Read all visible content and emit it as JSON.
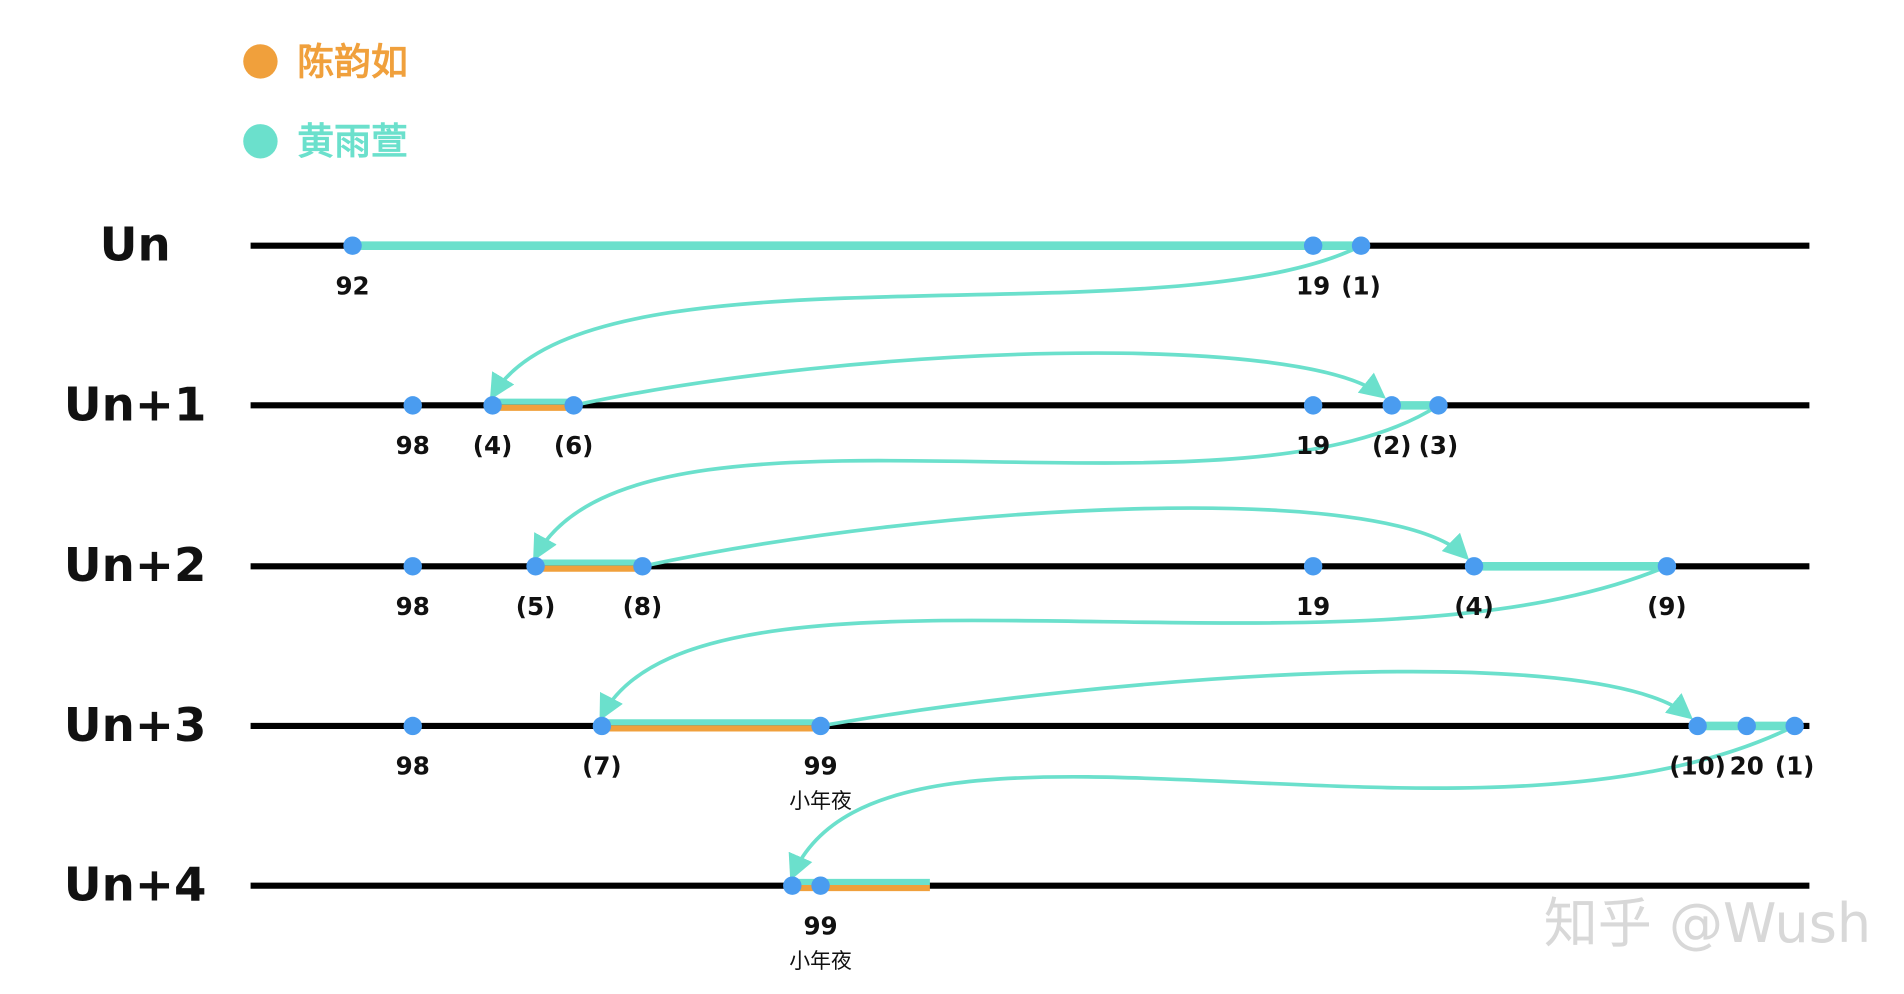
{
  "legend": [
    {
      "label": "陈韵如",
      "color": "#f0a03c"
    },
    {
      "label": "黄雨萱",
      "color": "#6be0cc"
    }
  ],
  "rows": [
    {
      "label": "Un",
      "points": [
        {
          "label": "92"
        },
        {
          "label": "19"
        },
        {
          "label": "(1)"
        }
      ]
    },
    {
      "label": "Un+1",
      "points": [
        {
          "label": "98"
        },
        {
          "label": "(4)"
        },
        {
          "label": "(6)"
        },
        {
          "label": "19"
        },
        {
          "label": "(2)"
        },
        {
          "label": "(3)"
        }
      ]
    },
    {
      "label": "Un+2",
      "points": [
        {
          "label": "98"
        },
        {
          "label": "(5)"
        },
        {
          "label": "(8)"
        },
        {
          "label": "19"
        },
        {
          "label": "(4)"
        },
        {
          "label": "(9)"
        }
      ]
    },
    {
      "label": "Un+3",
      "points": [
        {
          "label": "98"
        },
        {
          "label": "(7)"
        },
        {
          "label": "99",
          "sublabel": "小年夜"
        },
        {
          "label": "(10)"
        },
        {
          "label": "20"
        },
        {
          "label": "(1)"
        }
      ]
    },
    {
      "label": "Un+4",
      "points": [
        {},
        {
          "label": "99",
          "sublabel": "小年夜"
        }
      ]
    }
  ],
  "watermark": "知乎 @Wush"
}
